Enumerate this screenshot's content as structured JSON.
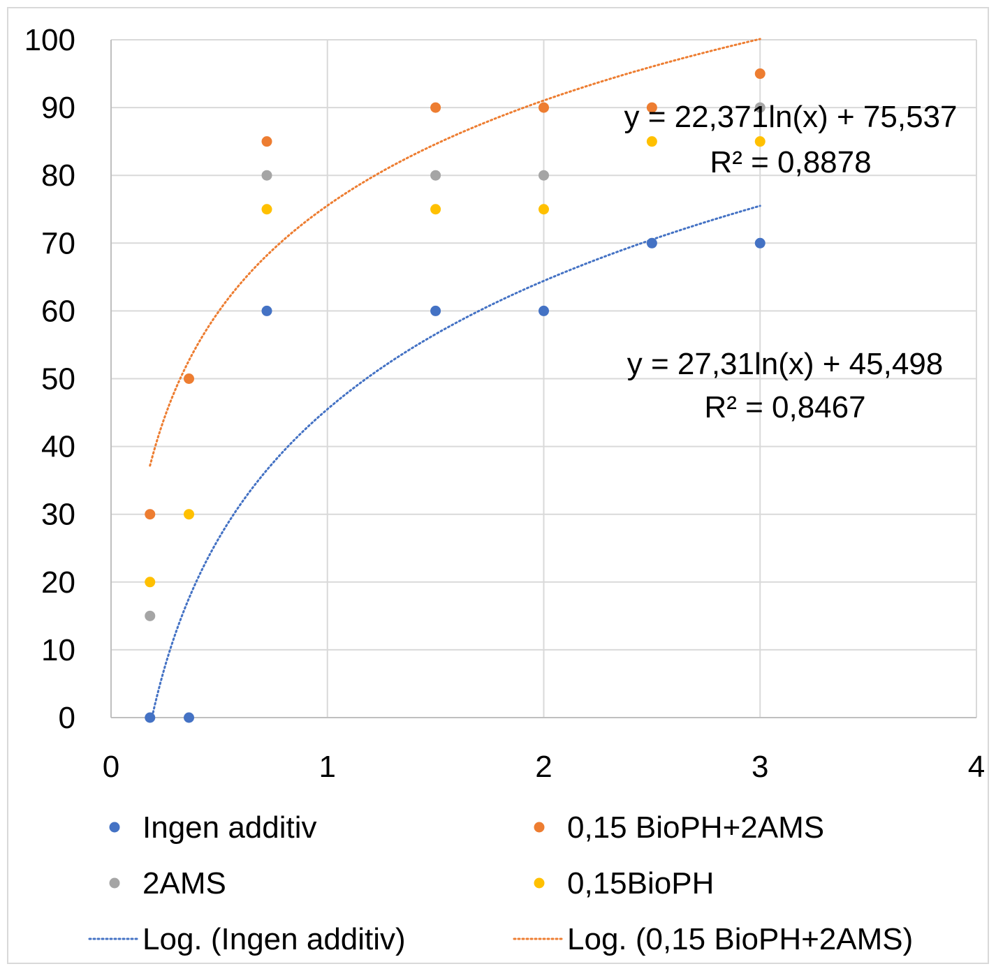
{
  "chart_data": {
    "type": "scatter",
    "title": "",
    "xlabel": "",
    "ylabel": "",
    "xlim": [
      0,
      4
    ],
    "ylim": [
      0,
      100
    ],
    "x_ticks": [
      0,
      1,
      2,
      3,
      4
    ],
    "y_ticks": [
      0,
      10,
      20,
      30,
      40,
      50,
      60,
      70,
      80,
      90,
      100
    ],
    "x_tick_labels": [
      "0",
      "1",
      "2",
      "3",
      "4"
    ],
    "y_tick_labels": [
      "0",
      "10",
      "20",
      "30",
      "40",
      "50",
      "60",
      "70",
      "80",
      "90",
      "100"
    ],
    "grid": true,
    "legend_position": "bottom",
    "series": [
      {
        "name": "Ingen additiv",
        "color": "#4472C4",
        "x": [
          0.18,
          0.36,
          0.72,
          1.5,
          2.0,
          2.5,
          3.0
        ],
        "y": [
          0,
          0,
          60,
          60,
          60,
          70,
          70
        ]
      },
      {
        "name": "0,15 BioPH+2AMS",
        "color": "#ED7D31",
        "x": [
          0.18,
          0.36,
          0.72,
          1.5,
          2.0,
          2.5,
          3.0
        ],
        "y": [
          30,
          50,
          85,
          90,
          90,
          90,
          95
        ]
      },
      {
        "name": "2AMS",
        "color": "#A5A5A5",
        "x": [
          0.18,
          0.72,
          1.5,
          2.0,
          3.0
        ],
        "y": [
          15,
          80,
          80,
          80,
          90
        ]
      },
      {
        "name": "0,15BioPH",
        "color": "#FFC000",
        "x": [
          0.18,
          0.36,
          0.72,
          1.5,
          2.0,
          2.5,
          3.0
        ],
        "y": [
          20,
          30,
          75,
          75,
          75,
          85,
          85
        ]
      }
    ],
    "trendlines": [
      {
        "name": "Log. (Ingen additiv)",
        "color": "#4472C4",
        "type": "logarithmic",
        "a": 27.31,
        "b": 45.498,
        "x_range": [
          0.19,
          3.0
        ],
        "equation": "y = 27,31ln(x) + 45,498",
        "r2": "R² = 0,8467"
      },
      {
        "name": "Log. (0,15 BioPH+2AMS)",
        "color": "#ED7D31",
        "type": "logarithmic",
        "a": 22.371,
        "b": 75.537,
        "x_range": [
          0.18,
          3.0
        ],
        "equation": "y = 22,371ln(x) + 75,537",
        "r2": "R² = 0,8878"
      }
    ]
  }
}
